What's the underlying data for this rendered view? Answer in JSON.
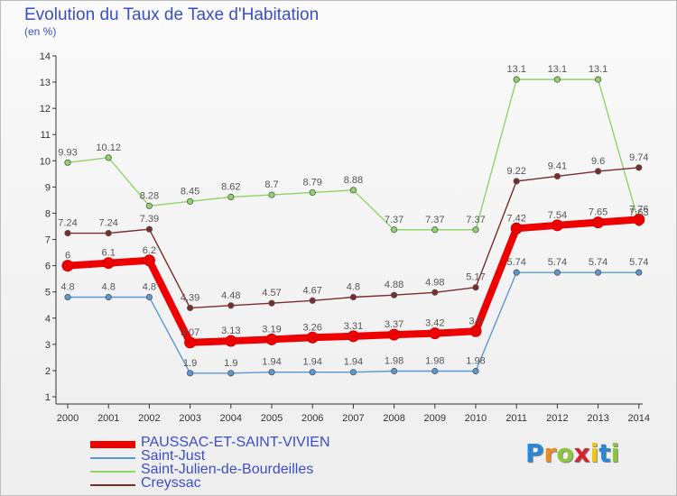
{
  "title": "Evolution du Taux de Taxe d'Habitation",
  "subtitle": "(en %)",
  "logo": {
    "text": "Proxiti",
    "colors": [
      "#2a86d6",
      "#f08a1c",
      "#8cc63f",
      "#d6222a",
      "#f0c419",
      "#2a86d6",
      "#8cc63f"
    ]
  },
  "chart_data": {
    "type": "line",
    "x": [
      "2000",
      "2001",
      "2002",
      "2003",
      "2004",
      "2005",
      "2006",
      "2007",
      "2008",
      "2009",
      "2010",
      "2011",
      "2012",
      "2013",
      "2014"
    ],
    "yticks": [
      "1",
      "2",
      "3",
      "4",
      "5",
      "6",
      "7",
      "8",
      "9",
      "10",
      "11",
      "12",
      "13",
      "14"
    ],
    "ylim": [
      1,
      14
    ],
    "legend_position": "bottom",
    "series": [
      {
        "name": "PAUSSAC-ET-SAINT-VIVIEN",
        "color": "#ee0000",
        "values": [
          6,
          6.1,
          6.2,
          3.07,
          3.13,
          3.19,
          3.26,
          3.31,
          3.37,
          3.42,
          3.5,
          7.42,
          7.54,
          7.65,
          7.76
        ],
        "labels": [
          "6",
          "6.1",
          "6.2",
          "3.07",
          "3.13",
          "3.19",
          "3.26",
          "3.31",
          "3.37",
          "3.42",
          "3.5",
          "7.42",
          "7.54",
          "7.65",
          "7.76"
        ]
      },
      {
        "name": "Saint-Just",
        "color": "#5b98d1",
        "values": [
          4.8,
          4.8,
          4.8,
          1.9,
          1.9,
          1.94,
          1.94,
          1.94,
          1.98,
          1.98,
          1.98,
          5.74,
          5.74,
          5.74,
          5.74
        ],
        "labels": [
          "4.8",
          "4.8",
          "4.8",
          "1.9",
          "1.9",
          "1.94",
          "1.94",
          "1.94",
          "1.98",
          "1.98",
          "1.98",
          "5.74",
          "5.74",
          "5.74",
          "5.74"
        ]
      },
      {
        "name": "Saint-Julien-de-Bourdeilles",
        "color": "#8fd46a",
        "values": [
          9.93,
          10.12,
          8.28,
          8.45,
          8.62,
          8.7,
          8.79,
          8.88,
          7.37,
          7.37,
          7.37,
          13.1,
          13.1,
          13.1,
          7.63
        ],
        "labels": [
          "9.93",
          "10.12",
          "8.28",
          "8.45",
          "8.62",
          "8.7",
          "8.79",
          "8.88",
          "7.37",
          "7.37",
          "7.37",
          "13.1",
          "13.1",
          "13.1",
          "7.63"
        ]
      },
      {
        "name": "Creyssac",
        "color": "#7a2b2b",
        "values": [
          7.24,
          7.24,
          7.39,
          4.39,
          4.48,
          4.57,
          4.67,
          4.8,
          4.88,
          4.98,
          5.17,
          9.22,
          9.41,
          9.6,
          9.74
        ],
        "labels": [
          "7.24",
          "7.24",
          "7.39",
          "4.39",
          "4.48",
          "4.57",
          "4.67",
          "4.8",
          "4.88",
          "4.98",
          "5.17",
          "9.22",
          "9.41",
          "9.6",
          "9.74"
        ]
      }
    ]
  }
}
